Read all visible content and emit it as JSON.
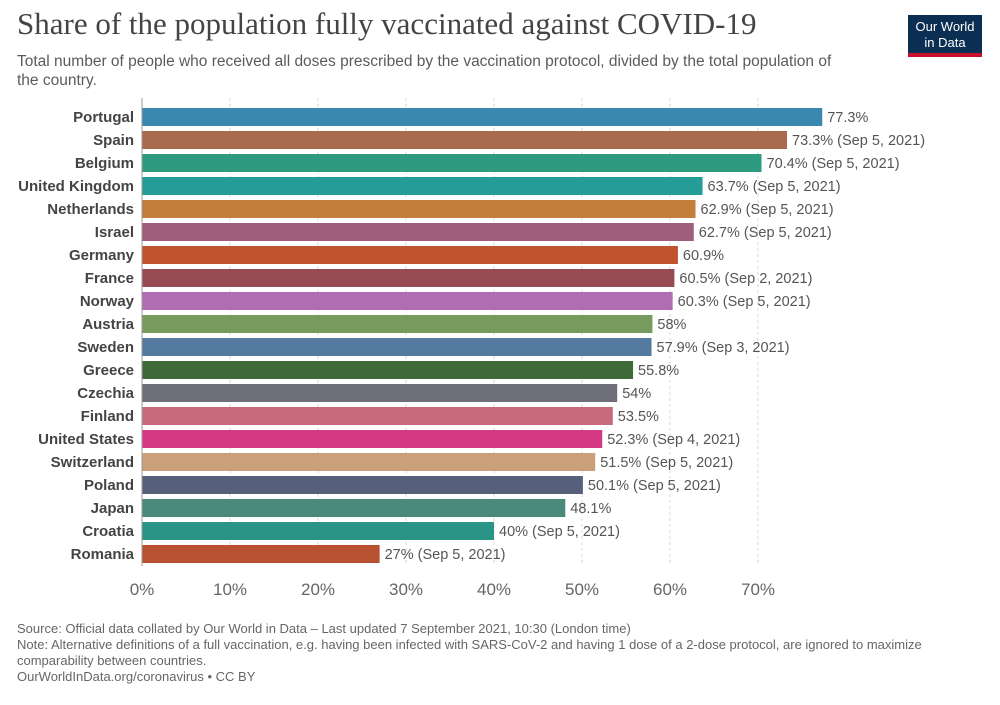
{
  "header": {
    "title": "Share of the population fully vaccinated against COVID-19",
    "subtitle": "Total number of people who received all doses prescribed by the vaccination protocol, divided by the total population of the country.",
    "logo_line1": "Our World",
    "logo_line2": "in Data"
  },
  "footer": {
    "source": "Source: Official data collated by Our World in Data – Last updated 7 September 2021, 10:30 (London time)",
    "note": "Note: Alternative definitions of a full vaccination, e.g. having been infected with SARS-CoV-2 and having 1 dose of a 2-dose protocol, are ignored to maximize comparability between countries.",
    "credit": "OurWorldInData.org/coronavirus • CC BY"
  },
  "chart_data": {
    "type": "bar",
    "orientation": "horizontal",
    "title": "Share of the population fully vaccinated against COVID-19",
    "subtitle": "Total number of people who received all doses prescribed by the vaccination protocol, divided by the total population of the country.",
    "xlabel": "",
    "ylabel": "",
    "xlim": [
      0,
      77.3
    ],
    "grid": "vertical dashed",
    "x_ticks": [
      "0%",
      "10%",
      "20%",
      "30%",
      "40%",
      "50%",
      "60%",
      "70%"
    ],
    "tick_values": [
      0,
      10,
      20,
      30,
      40,
      50,
      60,
      70
    ],
    "categories": [
      "Portugal",
      "Spain",
      "Belgium",
      "United Kingdom",
      "Netherlands",
      "Israel",
      "Germany",
      "France",
      "Norway",
      "Austria",
      "Sweden",
      "Greece",
      "Czechia",
      "Finland",
      "United States",
      "Switzerland",
      "Poland",
      "Japan",
      "Croatia",
      "Romania"
    ],
    "values": [
      77.3,
      73.3,
      70.4,
      63.7,
      62.9,
      62.7,
      60.9,
      60.5,
      60.3,
      58,
      57.9,
      55.8,
      54,
      53.5,
      52.3,
      51.5,
      50.1,
      48.1,
      40,
      27
    ],
    "value_labels": [
      "77.3%",
      "73.3% (Sep 5, 2021)",
      "70.4% (Sep 5, 2021)",
      "63.7% (Sep 5, 2021)",
      "62.9% (Sep 5, 2021)",
      "62.7% (Sep 5, 2021)",
      "60.9%",
      "60.5% (Sep 2, 2021)",
      "60.3% (Sep 5, 2021)",
      "58%",
      "57.9% (Sep 3, 2021)",
      "55.8%",
      "54%",
      "53.5%",
      "52.3% (Sep 4, 2021)",
      "51.5% (Sep 5, 2021)",
      "50.1% (Sep 5, 2021)",
      "48.1%",
      "40% (Sep 5, 2021)",
      "27% (Sep 5, 2021)"
    ],
    "colors": [
      "#3a87b0",
      "#a9694f",
      "#2e9a80",
      "#269c97",
      "#c57d3a",
      "#9e5e7a",
      "#c0542f",
      "#974b55",
      "#b06db1",
      "#779b5f",
      "#557aa0",
      "#3e6a38",
      "#6e6e78",
      "#c86a7c",
      "#d33a83",
      "#c9a07a",
      "#56607a",
      "#4a8a7b",
      "#2a9586",
      "#b85130"
    ]
  }
}
